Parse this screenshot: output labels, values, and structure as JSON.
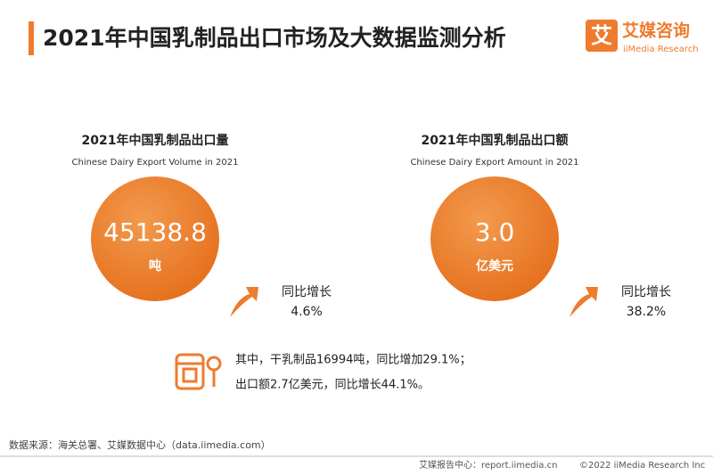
{
  "header": {
    "title": "2021年中国乳制品出口市场及大数据监测分析",
    "logo_icon": "艾",
    "logo_cn": "艾媒咨询",
    "logo_en": "iiMedia Research"
  },
  "kpis": [
    {
      "title_cn": "2021年中国乳制品出口量",
      "title_en": "Chinese Dairy Export Volume in 2021",
      "value": "45138.8",
      "unit": "吨",
      "growth_label": "同比增长",
      "growth": "4.6%"
    },
    {
      "title_cn": "2021年中国乳制品出口额",
      "title_en": "Chinese Dairy Export Amount in 2021",
      "value": "3.0",
      "unit": "亿美元",
      "growth_label": "同比增长",
      "growth": "38.2%"
    }
  ],
  "note": [
    "其中，干乳制品16994吨，同比增加29.1%；",
    "出口额2.7亿美元，同比增长44.1%。"
  ],
  "footer": {
    "source": "数据来源：海关总署、艾媒数据中心（data.iimedia.com）",
    "site": "艾媒报告中心：report.iimedia.cn",
    "copyright": "©2022  iiMedia Research  Inc"
  }
}
